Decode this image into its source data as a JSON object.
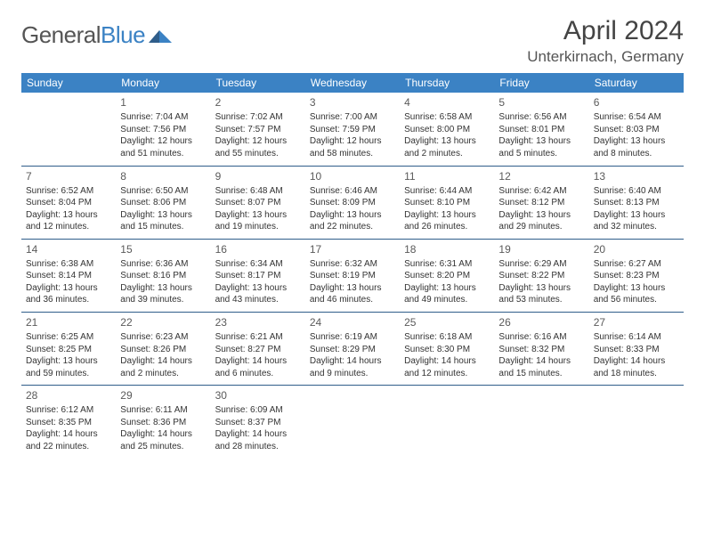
{
  "brand": {
    "name_a": "General",
    "name_b": "Blue"
  },
  "title": "April 2024",
  "location": "Unterkirnach, Germany",
  "colors": {
    "accent": "#3b82c4",
    "rule": "#2f5d8a",
    "bg": "#ffffff",
    "text": "#333333"
  },
  "day_headers": [
    "Sunday",
    "Monday",
    "Tuesday",
    "Wednesday",
    "Thursday",
    "Friday",
    "Saturday"
  ],
  "weeks": [
    [
      null,
      {
        "n": "1",
        "sr": "Sunrise: 7:04 AM",
        "ss": "Sunset: 7:56 PM",
        "d1": "Daylight: 12 hours",
        "d2": "and 51 minutes."
      },
      {
        "n": "2",
        "sr": "Sunrise: 7:02 AM",
        "ss": "Sunset: 7:57 PM",
        "d1": "Daylight: 12 hours",
        "d2": "and 55 minutes."
      },
      {
        "n": "3",
        "sr": "Sunrise: 7:00 AM",
        "ss": "Sunset: 7:59 PM",
        "d1": "Daylight: 12 hours",
        "d2": "and 58 minutes."
      },
      {
        "n": "4",
        "sr": "Sunrise: 6:58 AM",
        "ss": "Sunset: 8:00 PM",
        "d1": "Daylight: 13 hours",
        "d2": "and 2 minutes."
      },
      {
        "n": "5",
        "sr": "Sunrise: 6:56 AM",
        "ss": "Sunset: 8:01 PM",
        "d1": "Daylight: 13 hours",
        "d2": "and 5 minutes."
      },
      {
        "n": "6",
        "sr": "Sunrise: 6:54 AM",
        "ss": "Sunset: 8:03 PM",
        "d1": "Daylight: 13 hours",
        "d2": "and 8 minutes."
      }
    ],
    [
      {
        "n": "7",
        "sr": "Sunrise: 6:52 AM",
        "ss": "Sunset: 8:04 PM",
        "d1": "Daylight: 13 hours",
        "d2": "and 12 minutes."
      },
      {
        "n": "8",
        "sr": "Sunrise: 6:50 AM",
        "ss": "Sunset: 8:06 PM",
        "d1": "Daylight: 13 hours",
        "d2": "and 15 minutes."
      },
      {
        "n": "9",
        "sr": "Sunrise: 6:48 AM",
        "ss": "Sunset: 8:07 PM",
        "d1": "Daylight: 13 hours",
        "d2": "and 19 minutes."
      },
      {
        "n": "10",
        "sr": "Sunrise: 6:46 AM",
        "ss": "Sunset: 8:09 PM",
        "d1": "Daylight: 13 hours",
        "d2": "and 22 minutes."
      },
      {
        "n": "11",
        "sr": "Sunrise: 6:44 AM",
        "ss": "Sunset: 8:10 PM",
        "d1": "Daylight: 13 hours",
        "d2": "and 26 minutes."
      },
      {
        "n": "12",
        "sr": "Sunrise: 6:42 AM",
        "ss": "Sunset: 8:12 PM",
        "d1": "Daylight: 13 hours",
        "d2": "and 29 minutes."
      },
      {
        "n": "13",
        "sr": "Sunrise: 6:40 AM",
        "ss": "Sunset: 8:13 PM",
        "d1": "Daylight: 13 hours",
        "d2": "and 32 minutes."
      }
    ],
    [
      {
        "n": "14",
        "sr": "Sunrise: 6:38 AM",
        "ss": "Sunset: 8:14 PM",
        "d1": "Daylight: 13 hours",
        "d2": "and 36 minutes."
      },
      {
        "n": "15",
        "sr": "Sunrise: 6:36 AM",
        "ss": "Sunset: 8:16 PM",
        "d1": "Daylight: 13 hours",
        "d2": "and 39 minutes."
      },
      {
        "n": "16",
        "sr": "Sunrise: 6:34 AM",
        "ss": "Sunset: 8:17 PM",
        "d1": "Daylight: 13 hours",
        "d2": "and 43 minutes."
      },
      {
        "n": "17",
        "sr": "Sunrise: 6:32 AM",
        "ss": "Sunset: 8:19 PM",
        "d1": "Daylight: 13 hours",
        "d2": "and 46 minutes."
      },
      {
        "n": "18",
        "sr": "Sunrise: 6:31 AM",
        "ss": "Sunset: 8:20 PM",
        "d1": "Daylight: 13 hours",
        "d2": "and 49 minutes."
      },
      {
        "n": "19",
        "sr": "Sunrise: 6:29 AM",
        "ss": "Sunset: 8:22 PM",
        "d1": "Daylight: 13 hours",
        "d2": "and 53 minutes."
      },
      {
        "n": "20",
        "sr": "Sunrise: 6:27 AM",
        "ss": "Sunset: 8:23 PM",
        "d1": "Daylight: 13 hours",
        "d2": "and 56 minutes."
      }
    ],
    [
      {
        "n": "21",
        "sr": "Sunrise: 6:25 AM",
        "ss": "Sunset: 8:25 PM",
        "d1": "Daylight: 13 hours",
        "d2": "and 59 minutes."
      },
      {
        "n": "22",
        "sr": "Sunrise: 6:23 AM",
        "ss": "Sunset: 8:26 PM",
        "d1": "Daylight: 14 hours",
        "d2": "and 2 minutes."
      },
      {
        "n": "23",
        "sr": "Sunrise: 6:21 AM",
        "ss": "Sunset: 8:27 PM",
        "d1": "Daylight: 14 hours",
        "d2": "and 6 minutes."
      },
      {
        "n": "24",
        "sr": "Sunrise: 6:19 AM",
        "ss": "Sunset: 8:29 PM",
        "d1": "Daylight: 14 hours",
        "d2": "and 9 minutes."
      },
      {
        "n": "25",
        "sr": "Sunrise: 6:18 AM",
        "ss": "Sunset: 8:30 PM",
        "d1": "Daylight: 14 hours",
        "d2": "and 12 minutes."
      },
      {
        "n": "26",
        "sr": "Sunrise: 6:16 AM",
        "ss": "Sunset: 8:32 PM",
        "d1": "Daylight: 14 hours",
        "d2": "and 15 minutes."
      },
      {
        "n": "27",
        "sr": "Sunrise: 6:14 AM",
        "ss": "Sunset: 8:33 PM",
        "d1": "Daylight: 14 hours",
        "d2": "and 18 minutes."
      }
    ],
    [
      {
        "n": "28",
        "sr": "Sunrise: 6:12 AM",
        "ss": "Sunset: 8:35 PM",
        "d1": "Daylight: 14 hours",
        "d2": "and 22 minutes."
      },
      {
        "n": "29",
        "sr": "Sunrise: 6:11 AM",
        "ss": "Sunset: 8:36 PM",
        "d1": "Daylight: 14 hours",
        "d2": "and 25 minutes."
      },
      {
        "n": "30",
        "sr": "Sunrise: 6:09 AM",
        "ss": "Sunset: 8:37 PM",
        "d1": "Daylight: 14 hours",
        "d2": "and 28 minutes."
      },
      null,
      null,
      null,
      null
    ]
  ]
}
